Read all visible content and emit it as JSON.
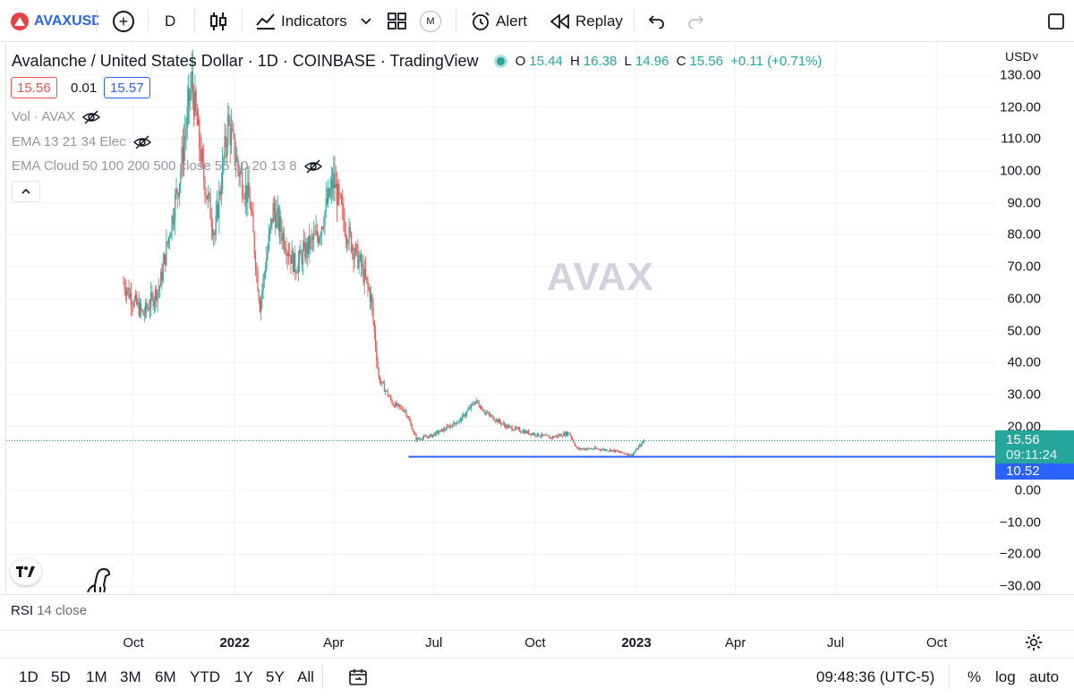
{
  "toolbar": {
    "symbol": "AVAXUSD",
    "interval": "D",
    "indicators_label": "Indicators",
    "m_badge": "M",
    "alert_label": "Alert",
    "replay_label": "Replay"
  },
  "legend": {
    "title": "Avalanche / United States Dollar · 1D · COINBASE · TradingView",
    "o_label": "O",
    "o_value": "15.44",
    "h_label": "H",
    "h_value": "16.38",
    "l_label": "L",
    "l_value": "14.96",
    "c_label": "C",
    "c_value": "15.56",
    "change": "+0.11 (+0.71%)",
    "sell_price": "15.56",
    "spread": "0.01",
    "buy_price": "15.57",
    "indicators": [
      "Vol · AVAX",
      "EMA 13 21 34 Elec",
      "EMA Cloud 50 100 200 500 close 55 50 20 13 8"
    ]
  },
  "watermark": "AVAX",
  "currency": "USD",
  "price_tag": {
    "price": "15.56",
    "countdown": "09:11:24"
  },
  "line_tag": "10.52",
  "rsi_label": "RSI",
  "rsi_params": "14 close",
  "time": "09:48:36 (UTC-5)",
  "ranges": [
    "1D",
    "5D",
    "1M",
    "3M",
    "6M",
    "YTD",
    "1Y",
    "5Y",
    "All"
  ],
  "scale_buttons": {
    "percent": "%",
    "log": "log",
    "auto": "auto"
  },
  "colors": {
    "up": "#26a69a",
    "down": "#ef5350",
    "line": "#2962ff",
    "accent": "#2962ff"
  },
  "chart_data": {
    "type": "candlestick",
    "title": "Avalanche / United States Dollar · 1D · COINBASE · TradingView",
    "ylim": [
      -30,
      130
    ],
    "y_ticks": [
      "130.00",
      "120.00",
      "110.00",
      "100.00",
      "90.00",
      "80.00",
      "70.00",
      "60.00",
      "50.00",
      "40.00",
      "30.00",
      "20.00",
      "0.00",
      "−10.00",
      "−20.00",
      "−30.00"
    ],
    "x_ticks": [
      "Oct",
      "2022",
      "Apr",
      "Jul",
      "Oct",
      "2023",
      "Apr",
      "Jul",
      "Oct"
    ],
    "x_tick_dates": [
      "2021-10-01",
      "2022-01-01",
      "2022-04-01",
      "2022-07-01",
      "2022-10-01",
      "2023-01-01",
      "2023-04-01",
      "2023-07-01",
      "2023-10-01"
    ],
    "close_series": [
      {
        "date": "2021-09-22",
        "close": 65
      },
      {
        "date": "2021-09-30",
        "close": 60
      },
      {
        "date": "2021-10-10",
        "close": 55
      },
      {
        "date": "2021-10-25",
        "close": 64
      },
      {
        "date": "2021-11-05",
        "close": 85
      },
      {
        "date": "2021-11-12",
        "close": 98
      },
      {
        "date": "2021-11-23",
        "close": 128
      },
      {
        "date": "2021-12-03",
        "close": 100
      },
      {
        "date": "2021-12-14",
        "close": 80
      },
      {
        "date": "2021-12-26",
        "close": 115
      },
      {
        "date": "2022-01-05",
        "close": 100
      },
      {
        "date": "2022-01-15",
        "close": 90
      },
      {
        "date": "2022-01-24",
        "close": 58
      },
      {
        "date": "2022-02-05",
        "close": 88
      },
      {
        "date": "2022-02-16",
        "close": 78
      },
      {
        "date": "2022-02-25",
        "close": 70
      },
      {
        "date": "2022-03-08",
        "close": 76
      },
      {
        "date": "2022-03-18",
        "close": 80
      },
      {
        "date": "2022-04-01",
        "close": 97
      },
      {
        "date": "2022-04-12",
        "close": 82
      },
      {
        "date": "2022-04-26",
        "close": 70
      },
      {
        "date": "2022-05-05",
        "close": 60
      },
      {
        "date": "2022-05-12",
        "close": 35
      },
      {
        "date": "2022-05-25",
        "close": 27
      },
      {
        "date": "2022-06-05",
        "close": 25
      },
      {
        "date": "2022-06-15",
        "close": 16
      },
      {
        "date": "2022-06-28",
        "close": 17
      },
      {
        "date": "2022-07-10",
        "close": 19
      },
      {
        "date": "2022-07-25",
        "close": 22
      },
      {
        "date": "2022-08-08",
        "close": 28
      },
      {
        "date": "2022-08-18",
        "close": 24
      },
      {
        "date": "2022-09-05",
        "close": 20
      },
      {
        "date": "2022-09-25",
        "close": 18
      },
      {
        "date": "2022-10-15",
        "close": 16.5
      },
      {
        "date": "2022-11-01",
        "close": 18
      },
      {
        "date": "2022-11-08",
        "close": 13
      },
      {
        "date": "2022-11-25",
        "close": 13
      },
      {
        "date": "2022-12-10",
        "close": 12.5
      },
      {
        "date": "2022-12-28",
        "close": 11
      },
      {
        "date": "2023-01-08",
        "close": 15.56
      }
    ],
    "last_close": 15.56,
    "horizontal_line": {
      "value": 10.52,
      "start_date": "2022-06-08"
    }
  }
}
